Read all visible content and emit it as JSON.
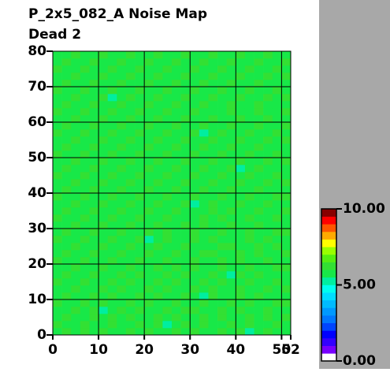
{
  "chart_data": {
    "type": "heatmap",
    "title": "P_2x5_082_A Noise Map",
    "subtitle": "Dead 2",
    "xlim": [
      0,
      52
    ],
    "ylim": [
      0,
      80
    ],
    "xticks": [
      0,
      10,
      20,
      30,
      40,
      50,
      52
    ],
    "yticks": [
      0,
      10,
      20,
      30,
      40,
      50,
      60,
      70,
      80
    ],
    "grid": true,
    "xbins": [
      0,
      2,
      4,
      6,
      8,
      10,
      12,
      14,
      16,
      18,
      20,
      22,
      24,
      26,
      28,
      30,
      32,
      34,
      36,
      38,
      40,
      42,
      44,
      46,
      48,
      50,
      52
    ],
    "ybins": [
      0,
      2,
      4,
      6,
      8,
      10,
      12,
      14,
      16,
      18,
      20,
      22,
      24,
      26,
      28,
      30,
      32,
      34,
      36,
      38,
      40,
      42,
      44,
      46,
      48,
      50,
      52,
      54,
      56,
      58,
      60,
      62,
      64,
      66,
      68,
      70,
      72,
      74,
      76,
      78,
      80
    ],
    "zlim": [
      0,
      10
    ],
    "colorbar_ticks": [
      {
        "value": 0,
        "label": "0.00"
      },
      {
        "value": 5,
        "label": "5.00"
      },
      {
        "value": 10,
        "label": "10.00"
      }
    ],
    "colorscale": [
      "#ffffff",
      "#7700ff",
      "#3300ff",
      "#0000ff",
      "#0044ff",
      "#0077ff",
      "#0099ff",
      "#00bbff",
      "#00ddff",
      "#00ffee",
      "#00eea0",
      "#18e848",
      "#33e033",
      "#55ee11",
      "#99ff00",
      "#ffff00",
      "#ffaa00",
      "#ff5500",
      "#ff0000",
      "#880000"
    ],
    "z": [
      [
        5.8,
        6.1,
        5.7,
        6.0,
        5.9,
        6.2,
        5.6,
        5.8,
        6.0,
        5.7,
        6.1,
        5.9,
        5.8,
        6.2,
        5.6,
        6.0,
        5.9,
        5.7,
        6.1,
        5.8,
        6.0,
        5.4,
        5.9,
        6.1,
        5.8,
        5.6
      ],
      [
        6.0,
        5.7,
        5.9,
        6.2,
        5.8,
        5.6,
        6.1,
        5.9,
        5.7,
        6.0,
        5.8,
        6.2,
        5.4,
        5.9,
        6.0,
        5.8,
        6.1,
        5.9,
        5.7,
        6.0,
        5.8,
        6.1,
        5.9,
        5.7,
        6.0,
        5.9
      ],
      [
        5.9,
        6.0,
        5.8,
        5.7,
        6.1,
        5.9,
        6.0,
        5.8,
        6.2,
        5.9,
        5.7,
        6.0,
        5.8,
        6.1,
        5.9,
        5.7,
        6.0,
        5.8,
        6.2,
        5.9,
        5.6,
        6.0,
        5.8,
        6.1,
        5.9,
        6.0
      ],
      [
        5.7,
        5.9,
        6.1,
        5.8,
        6.0,
        5.3,
        5.9,
        6.1,
        5.8,
        6.0,
        5.9,
        5.7,
        6.1,
        5.8,
        6.0,
        6.2,
        5.8,
        5.9,
        6.0,
        5.7,
        6.1,
        5.9,
        5.8,
        6.0,
        5.7,
        5.8
      ],
      [
        6.1,
        5.8,
        5.9,
        6.0,
        5.7,
        6.1,
        5.8,
        5.9,
        6.0,
        5.8,
        6.2,
        5.9,
        5.7,
        6.0,
        5.8,
        5.9,
        6.1,
        5.8,
        5.9,
        6.0,
        5.8,
        6.1,
        5.9,
        5.6,
        6.0,
        6.1
      ],
      [
        5.8,
        6.0,
        5.7,
        5.9,
        6.2,
        5.8,
        6.0,
        5.7,
        5.9,
        6.1,
        5.8,
        6.0,
        5.9,
        5.7,
        6.1,
        5.8,
        5.4,
        6.0,
        5.8,
        5.9,
        6.1,
        5.7,
        6.0,
        5.9,
        5.8,
        5.7
      ],
      [
        5.9,
        5.7,
        6.0,
        5.8,
        5.9,
        6.0,
        5.8,
        6.1,
        5.7,
        5.9,
        6.0,
        5.8,
        6.1,
        5.9,
        5.7,
        6.0,
        5.8,
        6.1,
        5.9,
        5.8,
        6.0,
        5.9,
        5.7,
        6.1,
        5.9,
        6.0
      ],
      [
        6.0,
        5.9,
        5.8,
        6.1,
        5.7,
        5.9,
        6.2,
        5.8,
        6.0,
        5.9,
        5.7,
        6.1,
        5.8,
        6.0,
        5.9,
        5.8,
        6.0,
        5.7,
        6.1,
        5.9,
        5.8,
        6.0,
        5.9,
        5.8,
        6.1,
        5.8
      ],
      [
        5.7,
        6.1,
        5.9,
        5.8,
        6.0,
        5.8,
        5.9,
        6.0,
        5.8,
        6.1,
        5.9,
        5.8,
        6.0,
        5.7,
        6.1,
        5.9,
        5.8,
        6.0,
        5.9,
        5.3,
        6.0,
        5.8,
        6.1,
        5.9,
        5.7,
        5.9
      ],
      [
        5.9,
        5.8,
        6.0,
        5.9,
        5.7,
        6.1,
        5.8,
        5.9,
        6.0,
        5.7,
        5.9,
        6.0,
        5.8,
        6.1,
        5.8,
        6.0,
        5.9,
        5.8,
        6.1,
        5.9,
        5.7,
        6.0,
        5.8,
        5.9,
        6.0,
        6.1
      ],
      [
        6.1,
        5.9,
        5.7,
        6.0,
        5.8,
        5.9,
        6.0,
        5.8,
        5.9,
        6.1,
        5.8,
        5.7,
        6.0,
        5.9,
        5.8,
        6.1,
        5.7,
        5.9,
        6.0,
        5.8,
        6.1,
        5.9,
        5.8,
        6.0,
        5.8,
        5.7
      ],
      [
        5.8,
        6.0,
        5.9,
        5.7,
        6.1,
        5.8,
        5.9,
        6.1,
        5.7,
        5.9,
        6.0,
        5.8,
        5.9,
        6.0,
        5.8,
        5.9,
        6.0,
        6.1,
        5.8,
        5.9,
        6.0,
        5.7,
        6.1,
        5.8,
        5.9,
        6.0
      ],
      [
        5.9,
        5.7,
        6.0,
        5.9,
        5.8,
        6.0,
        5.7,
        5.9,
        6.1,
        5.8,
        5.9,
        6.1,
        5.7,
        5.9,
        6.0,
        5.8,
        5.9,
        5.7,
        6.0,
        6.1,
        5.8,
        5.9,
        6.0,
        5.7,
        6.1,
        5.9
      ],
      [
        6.0,
        5.9,
        5.8,
        6.1,
        5.9,
        5.7,
        6.0,
        5.8,
        5.9,
        6.0,
        5.4,
        5.9,
        6.0,
        5.8,
        5.9,
        6.1,
        5.8,
        6.0,
        5.9,
        5.7,
        5.9,
        6.0,
        5.8,
        6.1,
        5.9,
        5.8
      ],
      [
        5.7,
        6.0,
        5.9,
        5.8,
        6.0,
        5.9,
        5.8,
        6.1,
        5.7,
        5.9,
        6.0,
        5.8,
        6.1,
        5.9,
        5.7,
        6.0,
        5.9,
        5.8,
        6.0,
        5.9,
        5.8,
        6.1,
        5.9,
        5.8,
        6.0,
        6.0
      ],
      [
        5.9,
        5.8,
        6.1,
        5.9,
        5.7,
        6.0,
        5.9,
        5.8,
        6.0,
        5.8,
        5.9,
        6.0,
        5.8,
        5.7,
        6.1,
        5.9,
        6.0,
        5.8,
        5.7,
        6.0,
        5.9,
        5.8,
        6.0,
        5.9,
        5.7,
        5.8
      ],
      [
        6.1,
        5.9,
        5.8,
        6.0,
        5.9,
        5.8,
        6.1,
        5.9,
        5.8,
        6.0,
        5.9,
        5.7,
        6.0,
        5.9,
        5.8,
        5.9,
        6.1,
        5.9,
        6.0,
        5.8,
        5.9,
        6.0,
        5.7,
        5.9,
        6.1,
        5.9
      ],
      [
        5.8,
        6.0,
        5.7,
        5.9,
        6.1,
        5.9,
        5.8,
        6.0,
        5.9,
        5.7,
        6.1,
        5.9,
        5.8,
        6.0,
        5.9,
        5.8,
        5.9,
        6.0,
        5.8,
        6.1,
        5.9,
        5.7,
        6.0,
        5.8,
        5.9,
        6.0
      ],
      [
        5.9,
        5.8,
        6.0,
        5.8,
        5.9,
        6.0,
        5.7,
        5.9,
        6.1,
        5.8,
        5.9,
        6.0,
        5.9,
        5.8,
        6.0,
        5.3,
        5.9,
        6.1,
        5.8,
        5.9,
        6.0,
        5.9,
        5.8,
        6.0,
        5.7,
        5.9
      ],
      [
        6.0,
        5.9,
        5.9,
        6.1,
        5.8,
        5.7,
        6.0,
        5.8,
        5.9,
        6.0,
        5.8,
        5.9,
        6.1,
        5.7,
        5.9,
        6.0,
        5.8,
        5.9,
        6.0,
        5.8,
        5.7,
        6.0,
        5.9,
        5.8,
        6.0,
        6.1
      ],
      [
        5.8,
        6.1,
        5.8,
        5.9,
        6.0,
        5.9,
        5.8,
        6.1,
        5.7,
        5.9,
        6.0,
        5.8,
        5.9,
        6.0,
        5.8,
        5.9,
        6.0,
        5.7,
        5.9,
        6.1,
        5.8,
        5.9,
        6.0,
        5.9,
        5.8,
        5.8
      ],
      [
        5.9,
        5.7,
        6.0,
        5.8,
        5.9,
        6.1,
        5.9,
        5.8,
        6.0,
        5.9,
        5.7,
        6.0,
        5.8,
        5.9,
        6.1,
        5.8,
        5.9,
        6.0,
        5.8,
        5.9,
        6.0,
        5.8,
        5.7,
        6.1,
        5.9,
        6.0
      ],
      [
        6.0,
        5.9,
        5.8,
        6.0,
        5.7,
        5.9,
        6.0,
        5.9,
        5.8,
        6.1,
        5.9,
        5.8,
        6.0,
        5.9,
        5.7,
        6.0,
        5.8,
        5.9,
        6.1,
        5.8,
        5.9,
        6.0,
        5.9,
        5.8,
        6.0,
        5.9
      ],
      [
        5.7,
        6.0,
        5.9,
        5.8,
        6.1,
        5.8,
        5.9,
        6.0,
        5.8,
        5.9,
        6.0,
        5.9,
        5.7,
        6.1,
        5.9,
        5.8,
        6.0,
        5.9,
        5.8,
        6.0,
        5.4,
        5.9,
        6.0,
        5.8,
        5.9,
        5.7
      ],
      [
        5.9,
        5.8,
        6.1,
        5.9,
        5.8,
        6.0,
        5.8,
        5.7,
        6.0,
        5.9,
        5.8,
        6.1,
        5.9,
        5.8,
        6.0,
        5.9,
        5.7,
        6.0,
        5.9,
        5.8,
        6.1,
        5.9,
        5.8,
        6.0,
        5.9,
        6.0
      ],
      [
        6.1,
        5.9,
        5.8,
        6.0,
        5.9,
        5.7,
        6.1,
        5.9,
        5.8,
        6.0,
        5.9,
        5.8,
        6.0,
        5.9,
        5.8,
        6.1,
        5.9,
        5.8,
        6.0,
        5.7,
        5.9,
        6.0,
        5.8,
        5.9,
        6.1,
        5.9
      ],
      [
        5.8,
        6.0,
        5.9,
        5.7,
        6.0,
        5.9,
        5.8,
        6.1,
        5.9,
        5.8,
        6.0,
        5.7,
        5.9,
        6.0,
        5.8,
        5.9,
        6.0,
        5.9,
        5.8,
        6.1,
        5.9,
        5.7,
        6.0,
        5.9,
        5.8,
        5.8
      ],
      [
        5.9,
        5.8,
        6.0,
        5.9,
        5.8,
        6.1,
        5.9,
        5.8,
        6.0,
        5.9,
        5.7,
        6.0,
        5.9,
        5.8,
        6.1,
        5.9,
        5.8,
        6.0,
        5.9,
        5.8,
        6.0,
        5.9,
        5.8,
        6.1,
        5.7,
        6.0
      ],
      [
        6.0,
        5.9,
        5.7,
        6.1,
        5.9,
        5.8,
        6.0,
        5.9,
        5.7,
        6.0,
        5.9,
        5.8,
        6.1,
        5.9,
        5.8,
        6.0,
        5.3,
        5.9,
        6.0,
        5.8,
        5.9,
        6.1,
        5.9,
        5.8,
        6.0,
        5.9
      ],
      [
        5.8,
        6.1,
        5.9,
        5.8,
        6.0,
        5.9,
        5.8,
        6.0,
        5.9,
        5.8,
        6.1,
        5.9,
        5.8,
        6.0,
        5.9,
        5.7,
        6.0,
        5.9,
        5.8,
        6.0,
        5.9,
        5.8,
        6.0,
        5.9,
        5.8,
        6.1
      ],
      [
        5.9,
        5.8,
        6.0,
        5.9,
        5.7,
        6.0,
        5.9,
        5.8,
        6.1,
        5.9,
        5.8,
        6.0,
        5.9,
        5.7,
        6.0,
        5.9,
        5.8,
        6.1,
        5.9,
        5.8,
        6.0,
        5.7,
        5.9,
        6.0,
        5.9,
        5.8
      ],
      [
        6.0,
        5.9,
        5.8,
        6.0,
        5.9,
        5.8,
        6.1,
        5.9,
        5.8,
        6.0,
        5.9,
        5.8,
        6.0,
        5.9,
        5.8,
        6.0,
        5.9,
        5.8,
        5.7,
        6.0,
        5.9,
        5.8,
        6.1,
        5.9,
        5.8,
        6.0
      ],
      [
        5.7,
        6.0,
        5.9,
        5.8,
        6.1,
        5.9,
        5.8,
        6.0,
        5.9,
        5.7,
        6.0,
        5.9,
        5.8,
        6.1,
        5.9,
        5.8,
        6.0,
        5.9,
        5.8,
        6.0,
        5.9,
        5.8,
        6.0,
        5.7,
        5.9,
        5.9
      ],
      [
        5.9,
        5.8,
        6.0,
        5.9,
        5.8,
        6.0,
        5.4,
        5.9,
        6.0,
        5.8,
        5.9,
        6.1,
        5.9,
        5.8,
        6.0,
        5.9,
        5.7,
        6.0,
        5.9,
        5.8,
        6.1,
        5.9,
        5.8,
        6.0,
        5.9,
        6.0
      ],
      [
        6.1,
        5.9,
        5.8,
        6.0,
        5.9,
        5.8,
        6.0,
        5.9,
        5.7,
        6.0,
        5.9,
        5.8,
        6.0,
        5.9,
        5.8,
        6.1,
        5.9,
        5.8,
        6.0,
        5.9,
        5.7,
        6.0,
        5.9,
        5.8,
        6.0,
        5.8
      ],
      [
        5.8,
        6.0,
        5.9,
        5.7,
        6.0,
        5.9,
        5.8,
        6.1,
        5.9,
        5.8,
        6.0,
        5.9,
        5.7,
        6.0,
        5.9,
        5.8,
        6.0,
        5.9,
        5.8,
        6.1,
        5.9,
        5.8,
        6.0,
        5.9,
        5.8,
        5.9
      ],
      [
        5.9,
        5.8,
        6.0,
        5.9,
        5.8,
        6.1,
        5.9,
        5.8,
        6.0,
        5.9,
        5.8,
        6.0,
        5.9,
        5.8,
        6.1,
        5.7,
        5.9,
        6.0,
        5.9,
        5.8,
        6.0,
        5.9,
        5.8,
        6.1,
        5.9,
        6.0
      ],
      [
        6.0,
        5.9,
        5.7,
        6.0,
        5.9,
        5.8,
        6.0,
        5.9,
        5.8,
        6.1,
        5.9,
        5.7,
        6.0,
        5.9,
        5.8,
        6.0,
        5.9,
        5.8,
        6.0,
        5.9,
        5.8,
        6.1,
        5.9,
        5.7,
        6.0,
        5.9
      ],
      [
        5.8,
        6.0,
        5.9,
        5.8,
        6.1,
        5.9,
        5.7,
        6.0,
        5.9,
        5.8,
        6.0,
        5.9,
        5.8,
        6.1,
        5.9,
        5.8,
        6.0,
        5.9,
        5.7,
        6.0,
        5.9,
        5.8,
        6.0,
        5.9,
        5.8,
        6.0
      ],
      [
        5.9,
        5.8,
        6.0,
        5.9,
        5.8,
        6.0,
        5.9,
        5.8,
        6.1,
        5.9,
        5.8,
        6.0,
        5.9,
        5.7,
        6.0,
        5.9,
        5.8,
        6.0,
        5.9,
        5.8,
        6.1,
        5.9,
        5.8,
        6.0,
        5.9,
        5.8
      ]
    ]
  }
}
